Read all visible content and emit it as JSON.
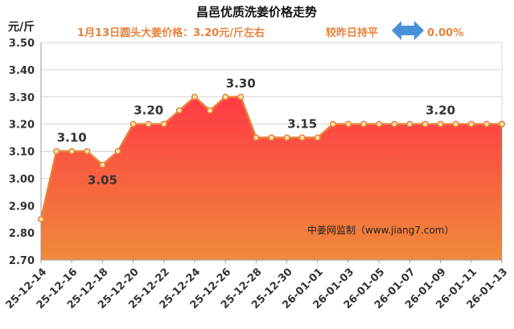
{
  "chart_data": {
    "type": "area",
    "title": "昌邑优质洗姜价格走势",
    "subtitle": "1月13日圆头大姜价格：3.20元/斤左右",
    "change_text": "较昨日持平",
    "change_value": "0.00%",
    "ylabel": "元/斤",
    "watermark": "中姜网监制（www.jiang7.com）",
    "ylim": [
      2.7,
      3.5
    ],
    "y_ticks": [
      "3.50",
      "3.40",
      "3.30",
      "3.20",
      "3.10",
      "3.00",
      "2.90",
      "2.80",
      "2.70"
    ],
    "x_tick_labels": [
      "25-12-14",
      "25-12-16",
      "25-12-18",
      "25-12-20",
      "25-12-22",
      "25-12-24",
      "25-12-26",
      "25-12-28",
      "25-12-30",
      "26-01-01",
      "26-01-03",
      "26-01-05",
      "26-01-07",
      "26-01-09",
      "26-01-11",
      "26-01-13"
    ],
    "x": [
      "25-12-14",
      "25-12-15",
      "25-12-16",
      "25-12-17",
      "25-12-18",
      "25-12-19",
      "25-12-20",
      "25-12-21",
      "25-12-22",
      "25-12-23",
      "25-12-24",
      "25-12-25",
      "25-12-26",
      "25-12-27",
      "25-12-28",
      "25-12-29",
      "25-12-30",
      "25-12-31",
      "26-01-01",
      "26-01-02",
      "26-01-03",
      "26-01-04",
      "26-01-05",
      "26-01-06",
      "26-01-07",
      "26-01-08",
      "26-01-09",
      "26-01-10",
      "26-01-11",
      "26-01-12",
      "26-01-13"
    ],
    "values": [
      2.85,
      3.1,
      3.1,
      3.1,
      3.05,
      3.1,
      3.2,
      3.2,
      3.2,
      3.25,
      3.3,
      3.25,
      3.3,
      3.3,
      3.15,
      3.15,
      3.15,
      3.15,
      3.15,
      3.2,
      3.2,
      3.2,
      3.2,
      3.2,
      3.2,
      3.2,
      3.2,
      3.2,
      3.2,
      3.2,
      3.2
    ],
    "annotations": [
      {
        "index": 2,
        "text": "3.10",
        "position": "above"
      },
      {
        "index": 4,
        "text": "3.05",
        "position": "below"
      },
      {
        "index": 7,
        "text": "3.20",
        "position": "above"
      },
      {
        "index": 13,
        "text": "3.30",
        "position": "above"
      },
      {
        "index": 17,
        "text": "3.15",
        "position": "above"
      },
      {
        "index": 26,
        "text": "3.20",
        "position": "above"
      }
    ],
    "grid": true,
    "colors": {
      "line": "#e8823a",
      "marker_fill": "#f6e3a8",
      "area_top": "#ff3a45",
      "area_bottom": "#ef8a3a",
      "arrow": "#4a90d9",
      "subtitle": "#e8823a"
    }
  }
}
